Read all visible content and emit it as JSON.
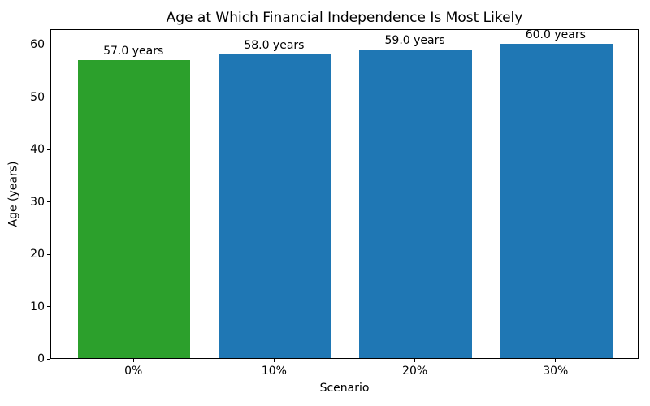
{
  "chart_data": {
    "type": "bar",
    "title": "Age at Which Financial Independence Is Most Likely",
    "xlabel": "Scenario",
    "ylabel": "Age (years)",
    "categories": [
      "0%",
      "10%",
      "20%",
      "30%"
    ],
    "values": [
      57.0,
      58.0,
      59.0,
      60.0
    ],
    "bar_labels": [
      "57.0 years",
      "58.0 years",
      "59.0 years",
      "60.0 years"
    ],
    "bar_colors": [
      "#2ca02c",
      "#1f77b4",
      "#1f77b4",
      "#1f77b4"
    ],
    "yticks": [
      0,
      10,
      20,
      30,
      40,
      50,
      60
    ],
    "ylim": [
      0,
      63
    ],
    "grid": false,
    "legend_position": "none",
    "background_color": "#ffffff",
    "text_color": "#000000"
  }
}
